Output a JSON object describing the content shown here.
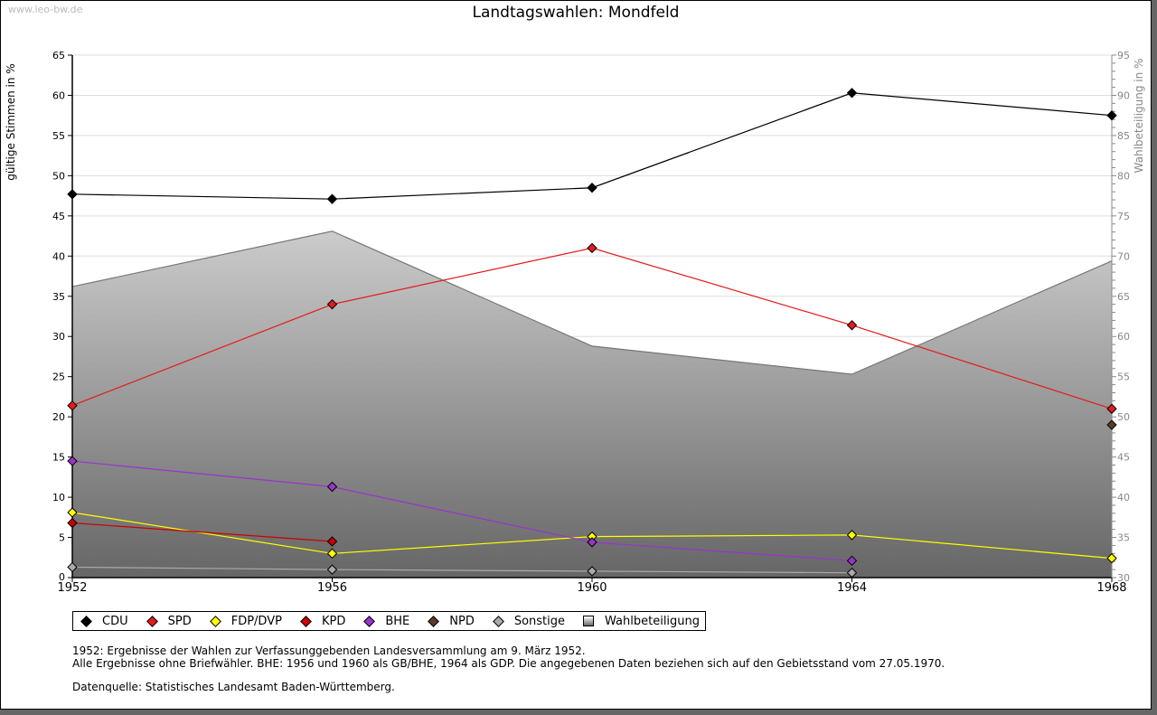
{
  "watermark": "www.leo-bw.de",
  "chart_data": {
    "type": "line",
    "title": "Landtagswahlen: Mondfeld",
    "xlabel": "",
    "ylabel": "gültige Stimmen in %",
    "y2label": "Wahlbeteiligung in %",
    "x": [
      1952,
      1956,
      1960,
      1964,
      1968
    ],
    "x_tick_labels": [
      "1952",
      "1956",
      "1960",
      "1964",
      "1968"
    ],
    "ylim": [
      0,
      65
    ],
    "y_ticks": [
      0,
      5,
      10,
      15,
      20,
      25,
      30,
      35,
      40,
      45,
      50,
      55,
      60,
      65
    ],
    "y2lim": [
      30,
      95
    ],
    "y2_ticks": [
      30,
      35,
      40,
      45,
      50,
      55,
      60,
      65,
      70,
      75,
      80,
      85,
      90,
      95
    ],
    "grid": true,
    "legend_position": "bottom-left",
    "series": [
      {
        "name": "CDU",
        "color": "#000000",
        "values": [
          47.7,
          47.1,
          48.5,
          60.3,
          57.5
        ]
      },
      {
        "name": "SPD",
        "color": "#e41a1c",
        "values": [
          21.4,
          34.0,
          41.0,
          31.4,
          21.0
        ]
      },
      {
        "name": "FDP/DVP",
        "color": "#ffff00",
        "values": [
          8.1,
          3.0,
          5.1,
          5.3,
          2.4
        ]
      },
      {
        "name": "KPD",
        "color": "#cc0000",
        "values": [
          6.8,
          4.5,
          null,
          null,
          null
        ]
      },
      {
        "name": "BHE",
        "color": "#9933cc",
        "values": [
          14.5,
          11.3,
          4.4,
          2.1,
          null
        ]
      },
      {
        "name": "NPD",
        "color": "#5a3c28",
        "values": [
          null,
          null,
          null,
          null,
          19.0
        ]
      },
      {
        "name": "Sonstige",
        "color": "#aaaaaa",
        "values": [
          1.3,
          1.0,
          0.8,
          0.6,
          null
        ]
      },
      {
        "name": "Wahlbeteiligung",
        "color": "#777777",
        "axis": "right",
        "type": "area",
        "values": [
          66.2,
          73.1,
          58.8,
          55.3,
          69.4
        ]
      }
    ]
  },
  "notes": [
    "1952: Ergebnisse der Wahlen zur Verfassunggebenden Landesversammlung am 9. März 1952.",
    "Alle Ergebnisse ohne Briefwähler. BHE: 1956 und 1960 als GB/BHE, 1964 als GDP. Die angegebenen Daten beziehen sich auf den Gebietsstand vom 27.05.1970."
  ],
  "source": "Datenquelle: Statistisches Landesamt Baden-Württemberg."
}
